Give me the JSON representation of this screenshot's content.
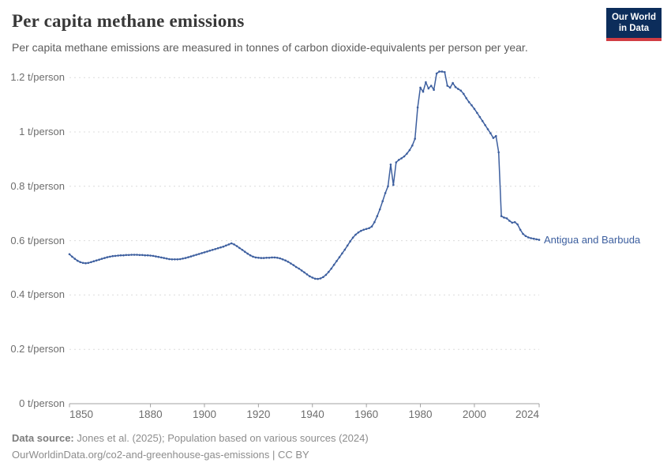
{
  "header": {
    "title": "Per capita methane emissions",
    "subtitle": "Per capita methane emissions are measured in tonnes of carbon dioxide-equivalents per person per year."
  },
  "logo": {
    "line1": "Our World",
    "line2": "in Data"
  },
  "chart_data": {
    "type": "line",
    "title": "Per capita methane emissions",
    "unit": "t/person",
    "grid": true,
    "legend_position": "end-of-line-label",
    "x_range": [
      1850,
      2024
    ],
    "ylim": [
      0,
      1.2
    ],
    "yticks": [
      0,
      0.2,
      0.4,
      0.6,
      0.8,
      1,
      1.2
    ],
    "ytick_labels": [
      "0 t/person",
      "0.2 t/person",
      "0.4 t/person",
      "0.6 t/person",
      "0.8 t/person",
      "1 t/person",
      "1.2 t/person"
    ],
    "xticks": [
      1850,
      1880,
      1900,
      1920,
      1940,
      1960,
      1980,
      2000,
      2024
    ],
    "line_color": "#3d5f9f",
    "grid_color": "#dcdcdc",
    "axis_color": "#a1a1a1",
    "series": [
      {
        "name": "Antigua and Barbuda",
        "x": [
          1850,
          1851,
          1852,
          1853,
          1854,
          1855,
          1856,
          1857,
          1858,
          1859,
          1860,
          1861,
          1862,
          1863,
          1864,
          1865,
          1866,
          1867,
          1868,
          1869,
          1870,
          1871,
          1872,
          1873,
          1874,
          1875,
          1876,
          1877,
          1878,
          1879,
          1880,
          1881,
          1882,
          1883,
          1884,
          1885,
          1886,
          1887,
          1888,
          1889,
          1890,
          1891,
          1892,
          1893,
          1894,
          1895,
          1896,
          1897,
          1898,
          1899,
          1900,
          1901,
          1902,
          1903,
          1904,
          1905,
          1906,
          1907,
          1908,
          1909,
          1910,
          1911,
          1912,
          1913,
          1914,
          1915,
          1916,
          1917,
          1918,
          1919,
          1920,
          1921,
          1922,
          1923,
          1924,
          1925,
          1926,
          1927,
          1928,
          1929,
          1930,
          1931,
          1932,
          1933,
          1934,
          1935,
          1936,
          1937,
          1938,
          1939,
          1940,
          1941,
          1942,
          1943,
          1944,
          1945,
          1946,
          1947,
          1948,
          1949,
          1950,
          1951,
          1952,
          1953,
          1954,
          1955,
          1956,
          1957,
          1958,
          1959,
          1960,
          1961,
          1962,
          1963,
          1964,
          1965,
          1966,
          1967,
          1968,
          1969,
          1970,
          1971,
          1972,
          1973,
          1974,
          1975,
          1976,
          1977,
          1978,
          1979,
          1980,
          1981,
          1982,
          1983,
          1984,
          1985,
          1986,
          1987,
          1988,
          1989,
          1990,
          1991,
          1992,
          1993,
          1994,
          1995,
          1996,
          1997,
          1998,
          1999,
          2000,
          2001,
          2002,
          2003,
          2004,
          2005,
          2006,
          2007,
          2008,
          2009,
          2010,
          2011,
          2012,
          2013,
          2014,
          2015,
          2016,
          2017,
          2018,
          2019,
          2020,
          2021,
          2022,
          2023,
          2024
        ],
        "values": [
          0.55,
          0.541,
          0.533,
          0.526,
          0.521,
          0.518,
          0.517,
          0.518,
          0.521,
          0.524,
          0.527,
          0.53,
          0.533,
          0.536,
          0.539,
          0.541,
          0.543,
          0.544,
          0.545,
          0.546,
          0.546,
          0.547,
          0.547,
          0.548,
          0.548,
          0.548,
          0.547,
          0.547,
          0.546,
          0.546,
          0.545,
          0.544,
          0.542,
          0.54,
          0.538,
          0.536,
          0.534,
          0.532,
          0.531,
          0.531,
          0.531,
          0.532,
          0.534,
          0.536,
          0.539,
          0.542,
          0.545,
          0.548,
          0.551,
          0.554,
          0.557,
          0.56,
          0.563,
          0.566,
          0.569,
          0.572,
          0.575,
          0.578,
          0.582,
          0.586,
          0.59,
          0.586,
          0.58,
          0.573,
          0.566,
          0.559,
          0.552,
          0.546,
          0.541,
          0.538,
          0.537,
          0.536,
          0.536,
          0.537,
          0.537,
          0.538,
          0.538,
          0.537,
          0.535,
          0.531,
          0.527,
          0.522,
          0.516,
          0.51,
          0.503,
          0.497,
          0.49,
          0.483,
          0.476,
          0.469,
          0.464,
          0.46,
          0.459,
          0.461,
          0.466,
          0.474,
          0.485,
          0.497,
          0.511,
          0.525,
          0.539,
          0.553,
          0.567,
          0.582,
          0.597,
          0.611,
          0.622,
          0.63,
          0.636,
          0.64,
          0.643,
          0.646,
          0.652,
          0.668,
          0.69,
          0.715,
          0.745,
          0.775,
          0.8,
          0.88,
          0.805,
          0.888,
          0.897,
          0.903,
          0.91,
          0.92,
          0.933,
          0.95,
          0.975,
          1.09,
          1.163,
          1.148,
          1.183,
          1.16,
          1.17,
          1.155,
          1.215,
          1.222,
          1.222,
          1.22,
          1.17,
          1.163,
          1.18,
          1.165,
          1.158,
          1.152,
          1.14,
          1.124,
          1.11,
          1.098,
          1.085,
          1.07,
          1.055,
          1.04,
          1.025,
          1.01,
          0.995,
          0.978,
          0.985,
          0.925,
          0.69,
          0.685,
          0.682,
          0.673,
          0.666,
          0.668,
          0.66,
          0.64,
          0.625,
          0.617,
          0.612,
          0.609,
          0.607,
          0.605,
          0.603
        ]
      }
    ]
  },
  "footer": {
    "source_label": "Data source:",
    "source_text": " Jones et al. (2025); Population based on various sources (2024)",
    "link_line": "OurWorldinData.org/co2-and-greenhouse-gas-emissions | CC BY"
  }
}
